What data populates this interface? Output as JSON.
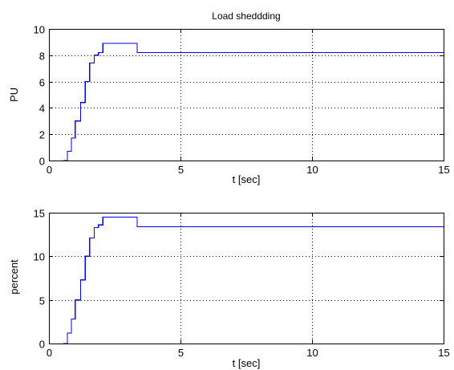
{
  "figure": {
    "background": "#ffffff",
    "axes_background": "#ffffff",
    "axis_color": "#000000",
    "grid_color": "#000000",
    "line_color": "#0000ff"
  },
  "chart_data": [
    {
      "type": "line",
      "title": "Load sheddding",
      "xlabel": "t [sec]",
      "ylabel": "PU",
      "xlim": [
        0,
        15
      ],
      "ylim": [
        0,
        10
      ],
      "xticks": [
        0,
        5,
        10,
        15
      ],
      "yticks": [
        0,
        2,
        4,
        6,
        8,
        10
      ],
      "xtick_labels": [
        "0",
        "5",
        "10",
        "15"
      ],
      "ytick_labels": [
        "0",
        "2",
        "4",
        "6",
        "8",
        "10"
      ],
      "grid": true,
      "grid_style": "dotted",
      "series": [
        {
          "step": "post",
          "x": [
            0.55,
            0.7,
            0.85,
            1.0,
            1.2,
            1.38,
            1.55,
            1.72,
            1.88,
            2.05,
            3.35,
            15
          ],
          "y": [
            0,
            0.7,
            1.7,
            3.0,
            4.4,
            6.0,
            7.4,
            8.0,
            8.2,
            8.9,
            8.2,
            8.2
          ]
        }
      ]
    },
    {
      "type": "line",
      "title": "",
      "xlabel": "t [sec]",
      "ylabel": "percent",
      "xlim": [
        0,
        15
      ],
      "ylim": [
        0,
        15
      ],
      "xticks": [
        0,
        5,
        10,
        15
      ],
      "yticks": [
        0,
        5,
        10,
        15
      ],
      "xtick_labels": [
        "0",
        "5",
        "10",
        "15"
      ],
      "ytick_labels": [
        "0",
        "5",
        "10",
        "15"
      ],
      "grid": true,
      "grid_style": "dotted",
      "series": [
        {
          "step": "post",
          "x": [
            0.55,
            0.7,
            0.85,
            1.0,
            1.2,
            1.38,
            1.55,
            1.72,
            1.88,
            2.05,
            3.35,
            15
          ],
          "y": [
            0,
            1.2,
            2.8,
            5.0,
            7.3,
            10.0,
            12.1,
            13.3,
            13.6,
            14.5,
            13.4,
            13.4
          ]
        }
      ]
    }
  ]
}
